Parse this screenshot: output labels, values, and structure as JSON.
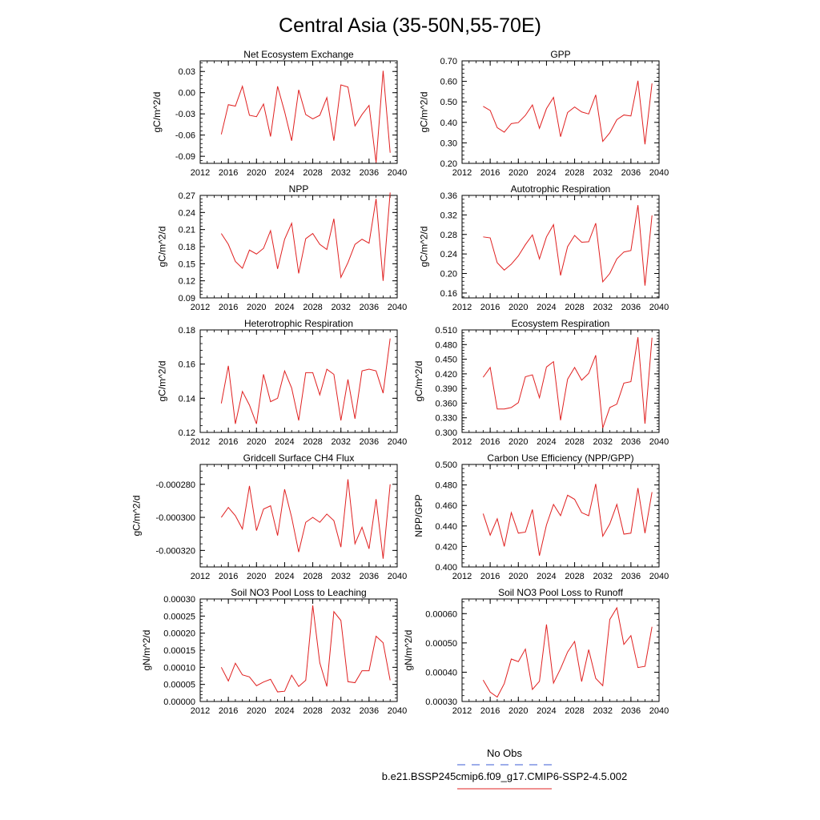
{
  "figure": {
    "title": "Central Asia (35-50N,55-70E)",
    "legend": [
      {
        "label": "No Obs",
        "color": "#3b5bd6",
        "dashed": true
      },
      {
        "label": "b.e21.BSSP245cmip6.f09_g17.CMIP6-SSP2-4.5.002",
        "color": "#e02020",
        "dashed": false
      }
    ]
  },
  "chart_data": [
    {
      "type": "line",
      "title": "Net Ecosystem Exchange",
      "ylabel": "gC/m^2/d",
      "xlim": [
        2012,
        2040
      ],
      "xticks": [
        2012,
        2016,
        2020,
        2024,
        2028,
        2032,
        2036,
        2040
      ],
      "ylim": [
        -0.1,
        0.045
      ],
      "yticks": [
        -0.09,
        -0.06,
        -0.03,
        0.0,
        0.03
      ],
      "ytick_labels": [
        "-0.09",
        "-0.06",
        "-0.03",
        "0.00",
        "0.03"
      ],
      "color": "#e02020",
      "x": [
        2015,
        2016,
        2017,
        2018,
        2019,
        2020,
        2021,
        2022,
        2023,
        2024,
        2025,
        2026,
        2027,
        2028,
        2029,
        2030,
        2031,
        2032,
        2033,
        2034,
        2035,
        2036,
        2037,
        2038,
        2039
      ],
      "y": [
        -0.059,
        -0.017,
        -0.019,
        0.009,
        -0.032,
        -0.034,
        -0.016,
        -0.062,
        0.009,
        -0.027,
        -0.068,
        0.004,
        -0.031,
        -0.037,
        -0.032,
        -0.007,
        -0.068,
        0.011,
        0.008,
        -0.047,
        -0.031,
        -0.018,
        -0.099,
        0.031,
        -0.085
      ]
    },
    {
      "type": "line",
      "title": "GPP",
      "ylabel": "gC/m^2/d",
      "xlim": [
        2012,
        2040
      ],
      "xticks": [
        2012,
        2016,
        2020,
        2024,
        2028,
        2032,
        2036,
        2040
      ],
      "ylim": [
        0.2,
        0.7
      ],
      "yticks": [
        0.2,
        0.3,
        0.4,
        0.5,
        0.6,
        0.7
      ],
      "ytick_labels": [
        "0.20",
        "0.30",
        "0.40",
        "0.50",
        "0.60",
        "0.70"
      ],
      "color": "#e02020",
      "x": [
        2015,
        2016,
        2017,
        2018,
        2019,
        2020,
        2021,
        2022,
        2023,
        2024,
        2025,
        2026,
        2027,
        2028,
        2029,
        2030,
        2031,
        2032,
        2033,
        2034,
        2035,
        2036,
        2037,
        2038,
        2039
      ],
      "y": [
        0.478,
        0.458,
        0.374,
        0.352,
        0.394,
        0.399,
        0.434,
        0.485,
        0.371,
        0.467,
        0.522,
        0.33,
        0.448,
        0.475,
        0.451,
        0.441,
        0.534,
        0.307,
        0.349,
        0.413,
        0.436,
        0.431,
        0.603,
        0.293,
        0.59
      ]
    },
    {
      "type": "line",
      "title": "NPP",
      "ylabel": "gC/m^2/d",
      "xlim": [
        2012,
        2040
      ],
      "xticks": [
        2012,
        2016,
        2020,
        2024,
        2028,
        2032,
        2036,
        2040
      ],
      "ylim": [
        0.09,
        0.27
      ],
      "yticks": [
        0.09,
        0.12,
        0.15,
        0.18,
        0.21,
        0.24,
        0.27
      ],
      "ytick_labels": [
        "0.09",
        "0.12",
        "0.15",
        "0.18",
        "0.21",
        "0.24",
        "0.27"
      ],
      "color": "#e02020",
      "x": [
        2015,
        2016,
        2017,
        2018,
        2019,
        2020,
        2021,
        2022,
        2023,
        2024,
        2025,
        2026,
        2027,
        2028,
        2029,
        2030,
        2031,
        2032,
        2033,
        2034,
        2035,
        2036,
        2037,
        2038,
        2039
      ],
      "y": [
        0.203,
        0.184,
        0.154,
        0.142,
        0.174,
        0.167,
        0.177,
        0.208,
        0.141,
        0.193,
        0.221,
        0.133,
        0.194,
        0.203,
        0.184,
        0.175,
        0.229,
        0.126,
        0.152,
        0.184,
        0.193,
        0.186,
        0.264,
        0.12,
        0.275
      ]
    },
    {
      "type": "line",
      "title": "Autotrophic Respiration",
      "ylabel": "gC/m^2/d",
      "xlim": [
        2012,
        2040
      ],
      "xticks": [
        2012,
        2016,
        2020,
        2024,
        2028,
        2032,
        2036,
        2040
      ],
      "ylim": [
        0.15,
        0.36
      ],
      "yticks": [
        0.16,
        0.2,
        0.24,
        0.28,
        0.32,
        0.36
      ],
      "ytick_labels": [
        "0.16",
        "0.20",
        "0.24",
        "0.28",
        "0.32",
        "0.36"
      ],
      "color": "#e02020",
      "x": [
        2015,
        2016,
        2017,
        2018,
        2019,
        2020,
        2021,
        2022,
        2023,
        2024,
        2025,
        2026,
        2027,
        2028,
        2029,
        2030,
        2031,
        2032,
        2033,
        2034,
        2035,
        2036,
        2037,
        2038,
        2039
      ],
      "y": [
        0.275,
        0.273,
        0.222,
        0.207,
        0.219,
        0.236,
        0.259,
        0.279,
        0.23,
        0.275,
        0.3,
        0.196,
        0.255,
        0.278,
        0.264,
        0.265,
        0.303,
        0.183,
        0.2,
        0.23,
        0.244,
        0.247,
        0.34,
        0.175,
        0.319
      ]
    },
    {
      "type": "line",
      "title": "Heterotrophic Respiration",
      "ylabel": "gC/m^2/d",
      "xlim": [
        2012,
        2040
      ],
      "xticks": [
        2012,
        2016,
        2020,
        2024,
        2028,
        2032,
        2036,
        2040
      ],
      "ylim": [
        0.12,
        0.18
      ],
      "yticks": [
        0.12,
        0.14,
        0.16,
        0.18
      ],
      "ytick_labels": [
        "0.12",
        "0.14",
        "0.16",
        "0.18"
      ],
      "color": "#e02020",
      "x": [
        2015,
        2016,
        2017,
        2018,
        2019,
        2020,
        2021,
        2022,
        2023,
        2024,
        2025,
        2026,
        2027,
        2028,
        2029,
        2030,
        2031,
        2032,
        2033,
        2034,
        2035,
        2036,
        2037,
        2038,
        2039
      ],
      "y": [
        0.137,
        0.159,
        0.125,
        0.144,
        0.136,
        0.125,
        0.154,
        0.138,
        0.14,
        0.156,
        0.146,
        0.127,
        0.155,
        0.155,
        0.142,
        0.157,
        0.154,
        0.127,
        0.151,
        0.128,
        0.156,
        0.157,
        0.156,
        0.143,
        0.175
      ]
    },
    {
      "type": "line",
      "title": "Ecosystem Respiration",
      "ylabel": "gC/m^2/d",
      "xlim": [
        2012,
        2040
      ],
      "xticks": [
        2012,
        2016,
        2020,
        2024,
        2028,
        2032,
        2036,
        2040
      ],
      "ylim": [
        0.3,
        0.51
      ],
      "yticks": [
        0.3,
        0.33,
        0.36,
        0.39,
        0.42,
        0.45,
        0.48,
        0.51
      ],
      "ytick_labels": [
        "0.300",
        "0.330",
        "0.360",
        "0.390",
        "0.420",
        "0.450",
        "0.480",
        "0.510"
      ],
      "color": "#e02020",
      "x": [
        2015,
        2016,
        2017,
        2018,
        2019,
        2020,
        2021,
        2022,
        2023,
        2024,
        2025,
        2026,
        2027,
        2028,
        2029,
        2030,
        2031,
        2032,
        2033,
        2034,
        2035,
        2036,
        2037,
        2038,
        2039
      ],
      "y": [
        0.413,
        0.433,
        0.348,
        0.348,
        0.351,
        0.361,
        0.414,
        0.418,
        0.371,
        0.434,
        0.445,
        0.325,
        0.409,
        0.433,
        0.407,
        0.421,
        0.458,
        0.309,
        0.351,
        0.358,
        0.401,
        0.404,
        0.495,
        0.318,
        0.494
      ]
    },
    {
      "type": "line",
      "title": "Gridcell Surface CH4 Flux",
      "ylabel": "gC/m^2/d",
      "xlim": [
        2012,
        2040
      ],
      "xticks": [
        2012,
        2016,
        2020,
        2024,
        2028,
        2032,
        2036,
        2040
      ],
      "ylim": [
        -0.00033,
        -0.000268
      ],
      "yticks": [
        -0.00032,
        -0.0003,
        -0.00028
      ],
      "ytick_labels": [
        "-0.000320",
        "-0.000300",
        "-0.000280"
      ],
      "color": "#e02020",
      "x": [
        2015,
        2016,
        2017,
        2018,
        2019,
        2020,
        2021,
        2022,
        2023,
        2024,
        2025,
        2026,
        2027,
        2028,
        2029,
        2030,
        2031,
        2032,
        2033,
        2034,
        2035,
        2036,
        2037,
        2038,
        2039
      ],
      "y": [
        -0.0003,
        -0.000294,
        -0.000299,
        -0.000307,
        -0.000281,
        -0.000308,
        -0.000295,
        -0.000293,
        -0.000311,
        -0.000283,
        -0.0003,
        -0.000321,
        -0.000303,
        -0.0003,
        -0.000303,
        -0.000298,
        -0.000302,
        -0.000318,
        -0.000277,
        -0.000316,
        -0.000306,
        -0.000319,
        -0.000289,
        -0.000325,
        -0.00028
      ]
    },
    {
      "type": "line",
      "title": "Carbon Use Efficiency (NPP/GPP)",
      "ylabel": "NPP/GPP",
      "xlim": [
        2012,
        2040
      ],
      "xticks": [
        2012,
        2016,
        2020,
        2024,
        2028,
        2032,
        2036,
        2040
      ],
      "ylim": [
        0.4,
        0.5
      ],
      "yticks": [
        0.4,
        0.42,
        0.44,
        0.46,
        0.48,
        0.5
      ],
      "ytick_labels": [
        "0.400",
        "0.420",
        "0.440",
        "0.460",
        "0.480",
        "0.500"
      ],
      "color": "#e02020",
      "x": [
        2015,
        2016,
        2017,
        2018,
        2019,
        2020,
        2021,
        2022,
        2023,
        2024,
        2025,
        2026,
        2027,
        2028,
        2029,
        2030,
        2031,
        2032,
        2033,
        2034,
        2035,
        2036,
        2037,
        2038,
        2039
      ],
      "y": [
        0.452,
        0.431,
        0.447,
        0.42,
        0.453,
        0.433,
        0.434,
        0.456,
        0.411,
        0.441,
        0.461,
        0.45,
        0.47,
        0.466,
        0.453,
        0.45,
        0.481,
        0.43,
        0.442,
        0.461,
        0.432,
        0.433,
        0.477,
        0.433,
        0.473
      ]
    },
    {
      "type": "line",
      "title": "Soil NO3 Pool Loss to Leaching",
      "ylabel": "gN/m^2/d",
      "xlim": [
        2012,
        2040
      ],
      "xticks": [
        2012,
        2016,
        2020,
        2024,
        2028,
        2032,
        2036,
        2040
      ],
      "ylim": [
        0.0,
        0.0003
      ],
      "yticks": [
        0.0,
        5e-05,
        0.0001,
        0.00015,
        0.0002,
        0.00025,
        0.0003
      ],
      "ytick_labels": [
        "0.00000",
        "0.00005",
        "0.00010",
        "0.00015",
        "0.00020",
        "0.00025",
        "0.00030"
      ],
      "color": "#e02020",
      "x": [
        2015,
        2016,
        2017,
        2018,
        2019,
        2020,
        2021,
        2022,
        2023,
        2024,
        2025,
        2026,
        2027,
        2028,
        2029,
        2030,
        2031,
        2032,
        2033,
        2034,
        2035,
        2036,
        2037,
        2038,
        2039
      ],
      "y": [
        0.0001,
        6e-05,
        0.000112,
        7.8e-05,
        7.2e-05,
        4.6e-05,
        5.7e-05,
        6.5e-05,
        2.8e-05,
        3e-05,
        7.7e-05,
        4.4e-05,
        6.2e-05,
        0.000281,
        0.000113,
        4.4e-05,
        0.000263,
        0.000237,
        5.8e-05,
        5.5e-05,
        9e-05,
        9e-05,
        0.000191,
        0.000172,
        6.2e-05
      ]
    },
    {
      "type": "line",
      "title": "Soil NO3 Pool Loss to Runoff",
      "ylabel": "gN/m^2/d",
      "xlim": [
        2012,
        2040
      ],
      "xticks": [
        2012,
        2016,
        2020,
        2024,
        2028,
        2032,
        2036,
        2040
      ],
      "ylim": [
        0.0003,
        0.00065
      ],
      "yticks": [
        0.0003,
        0.0004,
        0.0005,
        0.0006
      ],
      "ytick_labels": [
        "0.00030",
        "0.00040",
        "0.00050",
        "0.00060"
      ],
      "color": "#e02020",
      "x": [
        2015,
        2016,
        2017,
        2018,
        2019,
        2020,
        2021,
        2022,
        2023,
        2024,
        2025,
        2026,
        2027,
        2028,
        2029,
        2030,
        2031,
        2032,
        2033,
        2034,
        2035,
        2036,
        2037,
        2038,
        2039
      ],
      "y": [
        0.000373,
        0.000332,
        0.000315,
        0.000361,
        0.000445,
        0.000436,
        0.000479,
        0.000341,
        0.000369,
        0.000563,
        0.000363,
        0.000412,
        0.000469,
        0.000505,
        0.000368,
        0.000477,
        0.000379,
        0.000354,
        0.00058,
        0.00062,
        0.000495,
        0.000525,
        0.000416,
        0.00042,
        0.000555
      ]
    }
  ]
}
